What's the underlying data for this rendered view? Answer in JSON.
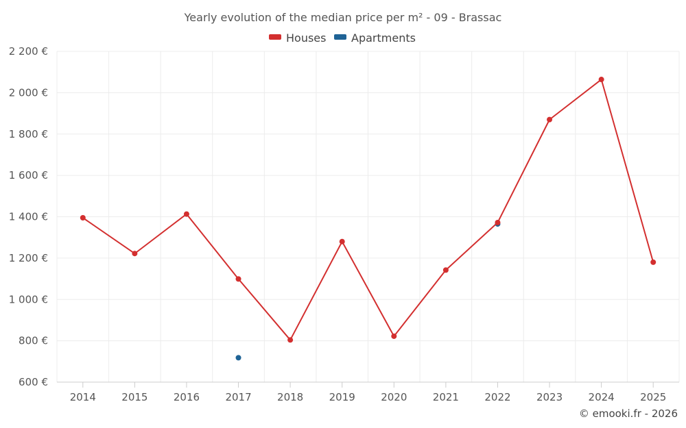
{
  "chart_data": {
    "type": "line",
    "title": "Yearly evolution of the median price per m² - 09 - Brassac",
    "categories": [
      "2014",
      "2015",
      "2016",
      "2017",
      "2018",
      "2019",
      "2020",
      "2021",
      "2022",
      "2023",
      "2024",
      "2025"
    ],
    "series": [
      {
        "name": "Houses",
        "color": "#d32f2f",
        "values": [
          1395,
          1222,
          1413,
          1099,
          804,
          1280,
          822,
          1142,
          1372,
          1870,
          2064,
          1180
        ]
      },
      {
        "name": "Apartments",
        "color": "#1f6396",
        "values": [
          null,
          null,
          null,
          718,
          null,
          null,
          null,
          null,
          1365,
          null,
          null,
          null
        ]
      }
    ],
    "ylim": [
      600,
      2200
    ],
    "yticks": [
      600,
      800,
      1000,
      1200,
      1400,
      1600,
      1800,
      2000,
      2200
    ],
    "ytick_labels": [
      "600 €",
      "800 €",
      "1 000 €",
      "1 200 €",
      "1 400 €",
      "1 600 €",
      "1 800 €",
      "2 000 €",
      "2 200 €"
    ],
    "xlabel": "",
    "ylabel": "",
    "grid": true,
    "legend_position": "top-center"
  },
  "credit": "© emooki.fr - 2026"
}
